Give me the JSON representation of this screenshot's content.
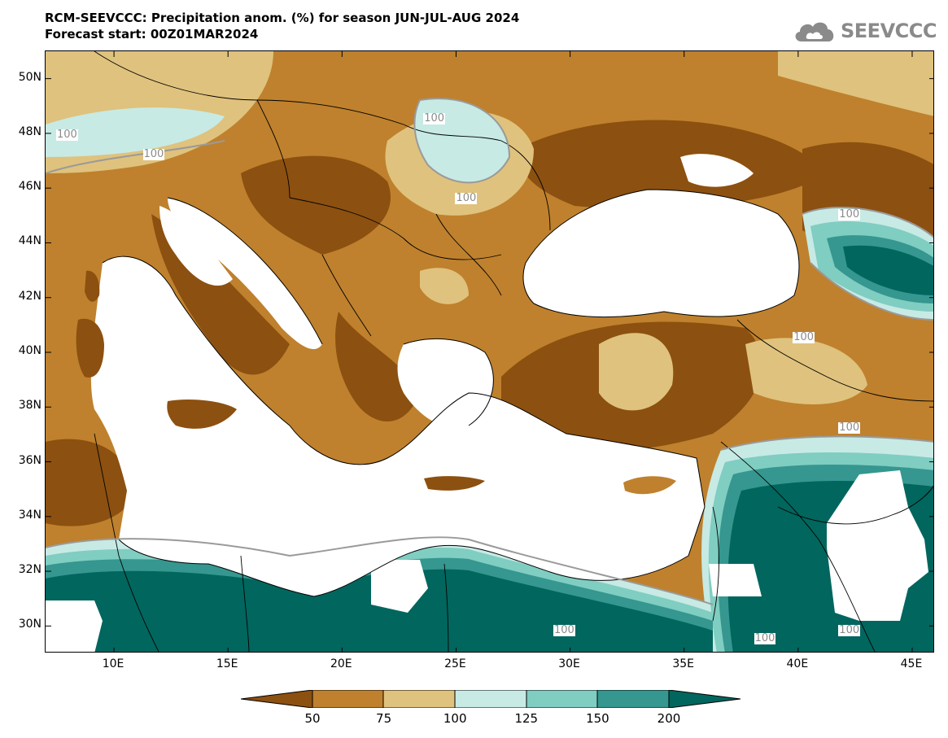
{
  "title": {
    "line1": "RCM-SEEVCCC: Precipitation anom. (%) for season JUN-JUL-AUG 2024",
    "line2": "Forecast start: 00Z01MAR2024"
  },
  "logo": {
    "text": "SEEVCCC",
    "icon": "cloud-icon"
  },
  "axes": {
    "lat_labels": [
      "50N",
      "48N",
      "46N",
      "44N",
      "42N",
      "40N",
      "38N",
      "36N",
      "34N",
      "32N",
      "30N"
    ],
    "lon_labels": [
      "10E",
      "15E",
      "20E",
      "25E",
      "30E",
      "35E",
      "40E",
      "45E"
    ],
    "lat_range": [
      29,
      51
    ],
    "lon_range": [
      7,
      46
    ]
  },
  "contour_labels": [
    {
      "text": "100",
      "lon": 8.0,
      "lat": 47.9
    },
    {
      "text": "100",
      "lon": 11.8,
      "lat": 47.2
    },
    {
      "text": "100",
      "lon": 24.1,
      "lat": 48.5
    },
    {
      "text": "100",
      "lon": 25.5,
      "lat": 45.6
    },
    {
      "text": "100",
      "lon": 40.3,
      "lat": 40.5
    },
    {
      "text": "100",
      "lon": 42.3,
      "lat": 45.0
    },
    {
      "text": "100",
      "lon": 42.3,
      "lat": 37.2
    },
    {
      "text": "100",
      "lon": 29.8,
      "lat": 29.8
    },
    {
      "text": "100",
      "lon": 38.6,
      "lat": 29.5
    },
    {
      "text": "100",
      "lon": 42.3,
      "lat": 29.8
    }
  ],
  "colorbar": {
    "ticks": [
      "50",
      "75",
      "100",
      "125",
      "150",
      "200"
    ],
    "colors": {
      "below_50": "#8c5010",
      "c50_75": "#bf812d",
      "c75_100": "#dfc27d",
      "c100_125": "#c7eae5",
      "c125_150": "#80cdc1",
      "c150_200": "#35978f",
      "above_200": "#01665e"
    }
  }
}
